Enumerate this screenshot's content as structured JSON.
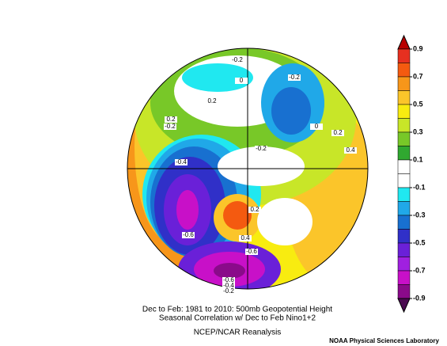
{
  "title_lines": [
    "Dec to Feb: 1981 to 2010: 500mb Geopotential Height",
    "Seasonal Correlation w/ Dec to Feb Nino1+2"
  ],
  "subtitle": "NCEP/NCAR Reanalysis",
  "credit": "NOAA Physical Sciences Laboratory",
  "colorbar": {
    "lim": [
      -0.9,
      0.9
    ],
    "ticks": [
      0.9,
      0.7,
      0.5,
      0.3,
      0.1,
      -0.1,
      -0.3,
      -0.5,
      -0.7,
      -0.9
    ],
    "colors": [
      "#b80000",
      "#e63020",
      "#f45a10",
      "#f7961a",
      "#fbc52a",
      "#f8ec10",
      "#c8e628",
      "#78c828",
      "#30a830",
      "#ffffff",
      "#ffffff",
      "#20e8f0",
      "#20a8e8",
      "#1870d0",
      "#3030c8",
      "#6a20d8",
      "#a020e0",
      "#c810c8",
      "#8a0a8a",
      "#4a0a50"
    ]
  },
  "contour_labels": [
    "-0.2",
    "0.2",
    "0.2",
    "-0.2",
    "-0.2",
    "0.2",
    "0.4",
    "-0.2",
    "-0.4",
    "0.2",
    "-0.6",
    "0.4",
    "-0.6",
    "-0.6",
    "-0.4",
    "-0.2",
    "0",
    "0"
  ]
}
